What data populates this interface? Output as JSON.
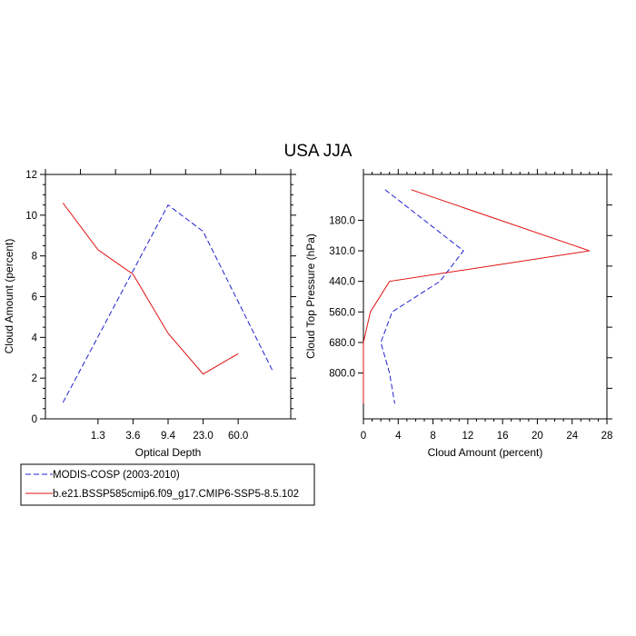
{
  "title": "USA JJA",
  "colors": {
    "modis": "#2020d0",
    "model": "#e01010",
    "axis": "#000000"
  },
  "legend": {
    "entries": [
      {
        "label": "MODIS-COSP (2003-2010)",
        "style": "dashed",
        "color": "#2020d0"
      },
      {
        "label": "b.e21.BSSP585cmip6.f09_g17.CMIP6-SSP5-8.5.102",
        "style": "solid",
        "color": "#e01010"
      }
    ]
  },
  "chart_data": [
    {
      "type": "line",
      "xlabel": "Optical Depth",
      "ylabel": "Cloud Amount (percent)",
      "x_ticks": [
        "1.3",
        "3.6",
        "9.4",
        "23.0",
        "60.0"
      ],
      "ylim": [
        0,
        12
      ],
      "y_ticks": [
        "0",
        "2",
        "4",
        "6",
        "8",
        "10",
        "12"
      ],
      "series": [
        {
          "name": "MODIS-COSP (2003-2010)",
          "x": [
            "0.3",
            "1.3",
            "3.6",
            "9.4",
            "23.0",
            "60.0",
            "380"
          ],
          "values": [
            0.8,
            null,
            null,
            10.5,
            9.2,
            null,
            2.3
          ]
        },
        {
          "name": "b.e21.BSSP585cmip6.f09_g17.CMIP6-SSP5-8.5.102",
          "x": [
            "0.3",
            "1.3",
            "3.6",
            "9.4",
            "23.0",
            "60.0",
            "380"
          ],
          "values": [
            10.6,
            8.3,
            7.1,
            4.2,
            2.2,
            3.2,
            null
          ]
        }
      ]
    },
    {
      "type": "line",
      "xlabel": "Cloud Amount (percent)",
      "ylabel": "Cloud Top Pressure (hPa)",
      "xlim": [
        0,
        28
      ],
      "x_ticks": [
        "0",
        "4",
        "8",
        "12",
        "16",
        "20",
        "24",
        "28"
      ],
      "y_ticks": [
        "180.0",
        "310.0",
        "440.0",
        "560.0",
        "680.0",
        "800.0"
      ],
      "y_inverted": true,
      "series": [
        {
          "name": "MODIS-COSP (2003-2010)",
          "y": [
            115,
            180,
            245,
            375,
            500,
            620,
            740,
            860
          ],
          "values": [
            2.5,
            null,
            11.5,
            8.8,
            3.3,
            2.0,
            3.0,
            3.6
          ]
        },
        {
          "name": "b.e21.BSSP585cmip6.f09_g17.CMIP6-SSP5-8.5.102",
          "y": [
            115,
            180,
            245,
            375,
            500,
            620,
            740,
            860
          ],
          "values": [
            5.5,
            null,
            26.0,
            3.0,
            0.8,
            0.0,
            0.0,
            0.0
          ]
        }
      ]
    }
  ]
}
